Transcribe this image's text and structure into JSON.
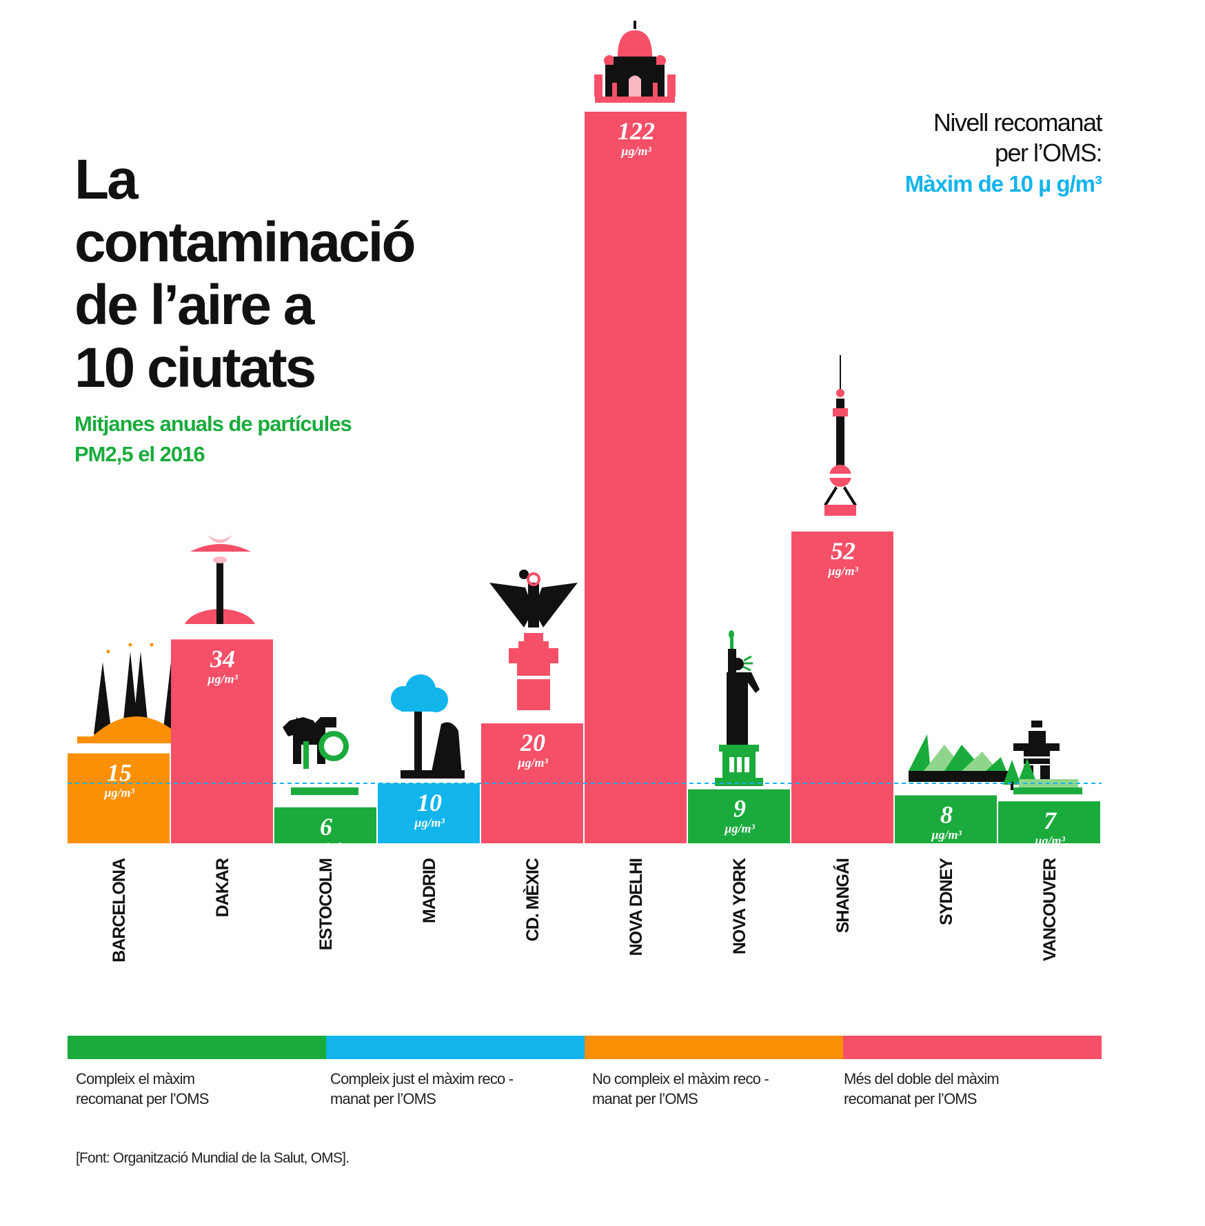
{
  "title": [
    "La",
    "contaminació",
    "de l’aire a",
    "10 ciutats"
  ],
  "subtitle": [
    "Mitjanes anuals de partícules",
    "PM2,5 el 2016"
  ],
  "who_note": {
    "line1": "Nivell recomanat",
    "line2": "per l’OMS:",
    "max": "Màxim de 10 µ g/m³"
  },
  "chart_data": {
    "type": "bar",
    "categories": [
      "BARCELONA",
      "DAKAR",
      "ESTOCOLM",
      "MADRID",
      "CD. MÈXIC",
      "NOVA DELHI",
      "NOVA YORK",
      "SHANGÁI",
      "SYDNEY",
      "VANCOUVER"
    ],
    "values": [
      15,
      34,
      6,
      10,
      20,
      122,
      9,
      52,
      8,
      7
    ],
    "unit_label": "µg/m³",
    "reference_line": 10,
    "ylim": [
      0,
      122
    ],
    "bar_colors": [
      "#fb8f05",
      "#f64f68",
      "#1aab3c",
      "#12b4ec",
      "#f64f68",
      "#f64f68",
      "#1aab3c",
      "#f64f68",
      "#1aab3c",
      "#1aab3c"
    ],
    "icons": [
      "sagrada-familia-icon",
      "fountain-icon",
      "dala-horse-icon",
      "bear-strawberry-tree-icon",
      "angel-independence-icon",
      "taj-mahal-icon",
      "statue-of-liberty-icon",
      "oriental-pearl-tower-icon",
      "sydney-opera-house-icon",
      "inukshuk-icon"
    ]
  },
  "legend": [
    {
      "color": "#1aab3c",
      "text1": "Compleix el màxim",
      "text2": "recomanat per l’OMS"
    },
    {
      "color": "#12b4ec",
      "text1": "Compleix just el màxim reco -",
      "text2": "manat per l’OMS"
    },
    {
      "color": "#fb8f05",
      "text1": "No compleix el màxim reco -",
      "text2": "manat per l’OMS"
    },
    {
      "color": "#f64f68",
      "text1": "Més del doble del màxim",
      "text2": "recomanat per l’OMS"
    }
  ],
  "source": "[Font: Organització Mundial de la Salut, OMS]."
}
